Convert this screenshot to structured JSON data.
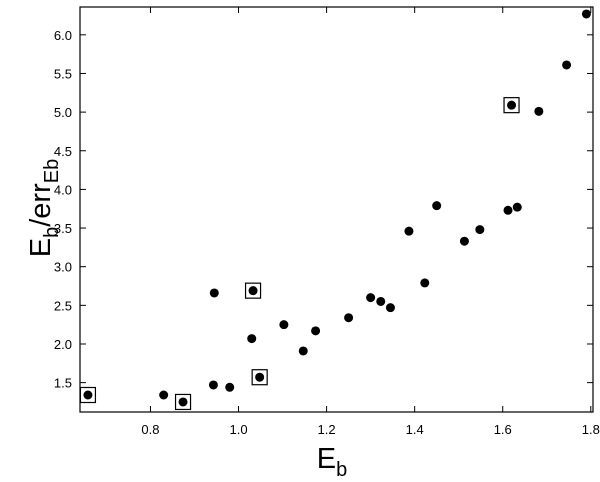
{
  "chart_data": {
    "type": "scatter",
    "title": "",
    "xlabel": {
      "main": "E",
      "sub": "b"
    },
    "ylabel": {
      "main": "E",
      "sub": "b",
      "mid": "/err",
      "sub2": "Eb"
    },
    "xlim": [
      0.64,
      1.805
    ],
    "ylim": [
      1.12,
      6.36
    ],
    "xticks": [
      "0.8",
      "1.0",
      "1.2",
      "1.4",
      "1.6",
      "1.8"
    ],
    "yticks": [
      "1.5",
      "2.0",
      "2.5",
      "3.0",
      "3.5",
      "4.0",
      "4.5",
      "5.0",
      "5.5",
      "6.0"
    ],
    "grid": false,
    "legend": "none",
    "series": [
      {
        "marker": "filled-circle",
        "x": [
          0.658,
          0.83,
          0.874,
          0.943,
          0.945,
          0.98,
          1.03,
          1.033,
          1.048,
          1.103,
          1.147,
          1.175,
          1.25,
          1.3,
          1.323,
          1.345,
          1.387,
          1.423,
          1.45,
          1.513,
          1.548,
          1.612,
          1.62,
          1.633,
          1.682,
          1.745,
          1.79
        ],
        "y": [
          1.34,
          1.34,
          1.25,
          1.47,
          2.66,
          1.44,
          2.07,
          2.69,
          1.57,
          2.25,
          1.91,
          2.17,
          2.34,
          2.6,
          2.55,
          2.47,
          3.46,
          2.79,
          3.79,
          3.33,
          3.48,
          3.73,
          5.09,
          3.77,
          5.01,
          5.61,
          6.27
        ]
      },
      {
        "marker": "open-square",
        "x": [
          0.658,
          0.874,
          1.033,
          1.048,
          1.62
        ],
        "y": [
          1.34,
          1.25,
          2.69,
          1.57,
          5.09
        ]
      }
    ]
  },
  "colors": {
    "marker": "#000000",
    "axis": "#000000",
    "background": "#ffffff"
  }
}
